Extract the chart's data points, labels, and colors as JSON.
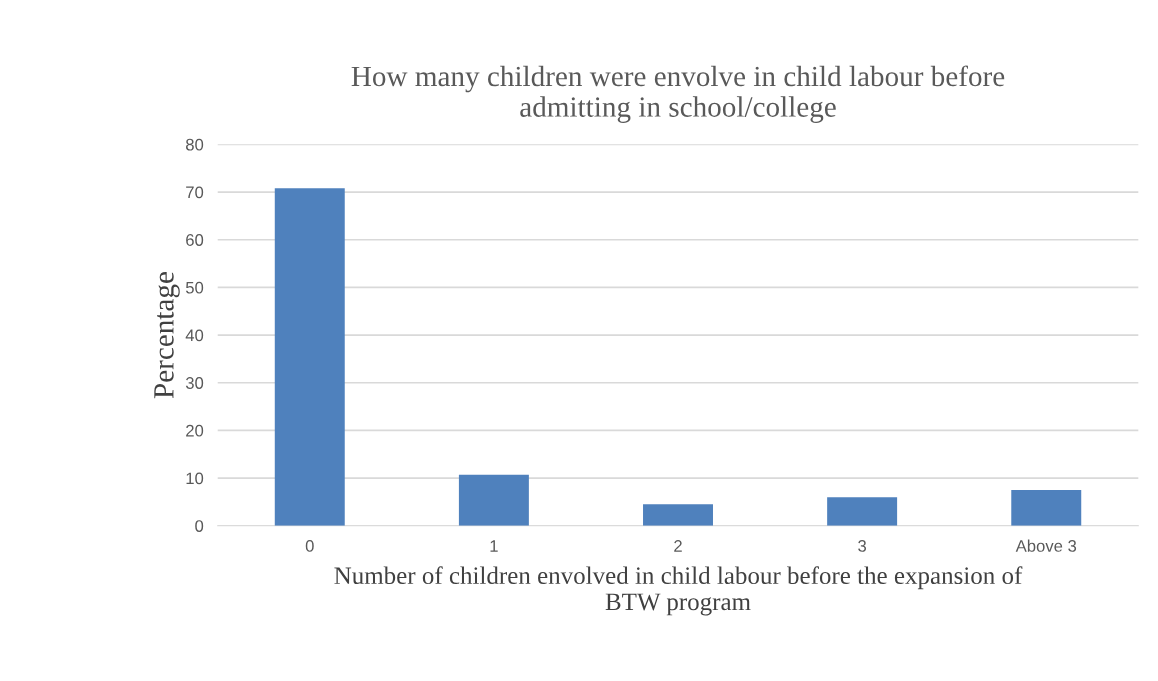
{
  "chart_data": {
    "type": "bar",
    "title": "How many children were envolve in child labour before\nadmitting in school/college",
    "xlabel": "Number of children envolved in child labour before the expansion of\nBTW program",
    "ylabel": "Percentage",
    "categories": [
      "0",
      "1",
      "2",
      "3",
      "Above 3"
    ],
    "values": [
      70.8,
      10.7,
      4.5,
      6.0,
      7.5
    ],
    "color": "#4f81bd",
    "ylim": [
      0,
      80
    ],
    "yticks": [
      0,
      10,
      20,
      30,
      40,
      50,
      60,
      70,
      80
    ],
    "grid": "y"
  }
}
